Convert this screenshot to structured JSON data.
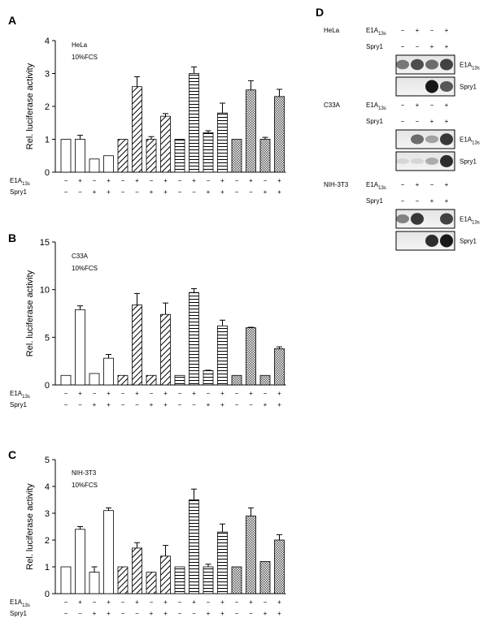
{
  "chart_data": [
    {
      "type": "bar",
      "panel": "A",
      "y_label": "Rel. luciferase activity",
      "annotations": [
        "HeLa",
        "10%FCS"
      ],
      "values": [
        1,
        1,
        0.4,
        0.5,
        1,
        2.6,
        1,
        1.7,
        1,
        3.0,
        1.2,
        1.8,
        1,
        2.5,
        1,
        2.3
      ],
      "errors": [
        null,
        0.12,
        null,
        null,
        null,
        0.3,
        0.08,
        0.08,
        null,
        0.2,
        0.06,
        0.3,
        null,
        0.28,
        0.06,
        0.22
      ],
      "patterns": [
        "open",
        "open",
        "open",
        "open",
        "diagonal",
        "diagonal",
        "diagonal",
        "diagonal",
        "horizontal",
        "horizontal",
        "horizontal",
        "horizontal",
        "crosshatch",
        "crosshatch",
        "crosshatch",
        "crosshatch"
      ],
      "rows": [
        {
          "label": "E1A",
          "subscript": "13s",
          "signs": [
            "−",
            "+",
            "−",
            "+",
            "−",
            "+",
            "−",
            "+",
            "−",
            "+",
            "−",
            "+",
            "−",
            "+",
            "−",
            "+"
          ]
        },
        {
          "label": "Spry1",
          "signs": [
            "−",
            "−",
            "+",
            "+",
            "−",
            "−",
            "+",
            "+",
            "−",
            "−",
            "+",
            "+",
            "−",
            "−",
            "+",
            "+"
          ]
        }
      ],
      "ylim": [
        0,
        4
      ],
      "yticks": [
        0,
        1,
        2,
        3,
        4
      ]
    },
    {
      "type": "bar",
      "panel": "B",
      "y_label": "Rel. luciferase activity",
      "annotations": [
        "C33A",
        "10%FCS"
      ],
      "values": [
        1,
        7.9,
        1.2,
        2.8,
        1,
        8.4,
        1,
        7.4,
        1,
        9.7,
        1.5,
        6.2,
        1,
        6.0,
        1,
        3.8
      ],
      "errors": [
        null,
        0.4,
        null,
        0.4,
        null,
        1.2,
        null,
        1.2,
        null,
        0.4,
        0.05,
        0.6,
        null,
        0.05,
        null,
        0.2
      ],
      "patterns": [
        "open",
        "open",
        "open",
        "open",
        "diagonal",
        "diagonal",
        "diagonal",
        "diagonal",
        "horizontal",
        "horizontal",
        "horizontal",
        "horizontal",
        "crosshatch",
        "crosshatch",
        "crosshatch",
        "crosshatch"
      ],
      "rows": [
        {
          "label": "E1A",
          "subscript": "13s",
          "signs": [
            "−",
            "+",
            "−",
            "+",
            "−",
            "+",
            "−",
            "+",
            "−",
            "+",
            "−",
            "+",
            "−",
            "+",
            "−",
            "+"
          ]
        },
        {
          "label": "Spry1",
          "signs": [
            "−",
            "−",
            "+",
            "+",
            "−",
            "−",
            "+",
            "+",
            "−",
            "−",
            "+",
            "+",
            "−",
            "−",
            "+",
            "+"
          ]
        }
      ],
      "ylim": [
        0,
        15
      ],
      "yticks": [
        0,
        5,
        10,
        15
      ]
    },
    {
      "type": "bar",
      "panel": "C",
      "y_label": "Rel. luciferase activity",
      "annotations": [
        "NIH-3T3",
        "10%FCS"
      ],
      "values": [
        1,
        2.4,
        0.8,
        3.1,
        1,
        1.7,
        0.8,
        1.4,
        1,
        3.5,
        1.0,
        2.3,
        1,
        2.9,
        1.2,
        2.0
      ],
      "errors": [
        null,
        0.1,
        0.2,
        0.1,
        null,
        0.2,
        null,
        0.4,
        null,
        0.4,
        0.1,
        0.3,
        null,
        0.3,
        null,
        0.2
      ],
      "patterns": [
        "open",
        "open",
        "open",
        "open",
        "diagonal",
        "diagonal",
        "diagonal",
        "diagonal",
        "horizontal",
        "horizontal",
        "horizontal",
        "horizontal",
        "crosshatch",
        "crosshatch",
        "crosshatch",
        "crosshatch"
      ],
      "rows": [
        {
          "label": "E1A",
          "subscript": "13s",
          "signs": [
            "−",
            "+",
            "−",
            "+",
            "−",
            "+",
            "−",
            "+",
            "−",
            "+",
            "−",
            "+",
            "−",
            "+",
            "−",
            "+"
          ]
        },
        {
          "label": "Spry1",
          "signs": [
            "−",
            "−",
            "+",
            "+",
            "−",
            "−",
            "+",
            "+",
            "−",
            "−",
            "+",
            "+",
            "−",
            "−",
            "+",
            "+"
          ]
        }
      ],
      "ylim": [
        0,
        5
      ],
      "yticks": [
        0,
        1,
        2,
        3,
        4,
        5
      ]
    }
  ],
  "panel_d": {
    "panel": "D",
    "blots": [
      {
        "cell": "HeLa",
        "rows": [
          {
            "label": "E1A",
            "subscript": "13s",
            "signs": [
              "−",
              "+",
              "−",
              "+"
            ]
          },
          {
            "label": "Spry1",
            "signs": [
              "−",
              "−",
              "+",
              "+"
            ]
          }
        ],
        "bands": [
          {
            "label": "E1A",
            "subscript": "13s"
          },
          {
            "label": "Spry1"
          }
        ]
      },
      {
        "cell": "C33A",
        "rows": [
          {
            "label": "E1A",
            "subscript": "13s",
            "signs": [
              "−",
              "+",
              "−",
              "+"
            ]
          },
          {
            "label": "Spry1",
            "signs": [
              "−",
              "−",
              "+",
              "+"
            ]
          }
        ],
        "bands": [
          {
            "label": "E1A",
            "subscript": "13s"
          },
          {
            "label": "Spry1"
          }
        ]
      },
      {
        "cell": "NIH-3T3",
        "rows": [
          {
            "label": "E1A",
            "subscript": "13s",
            "signs": [
              "−",
              "+",
              "−",
              "+"
            ]
          },
          {
            "label": "Spry1",
            "signs": [
              "−",
              "−",
              "+",
              "+"
            ]
          }
        ],
        "bands": [
          {
            "label": "E1A",
            "subscript": "13s"
          },
          {
            "label": "Spry1"
          }
        ]
      }
    ]
  }
}
